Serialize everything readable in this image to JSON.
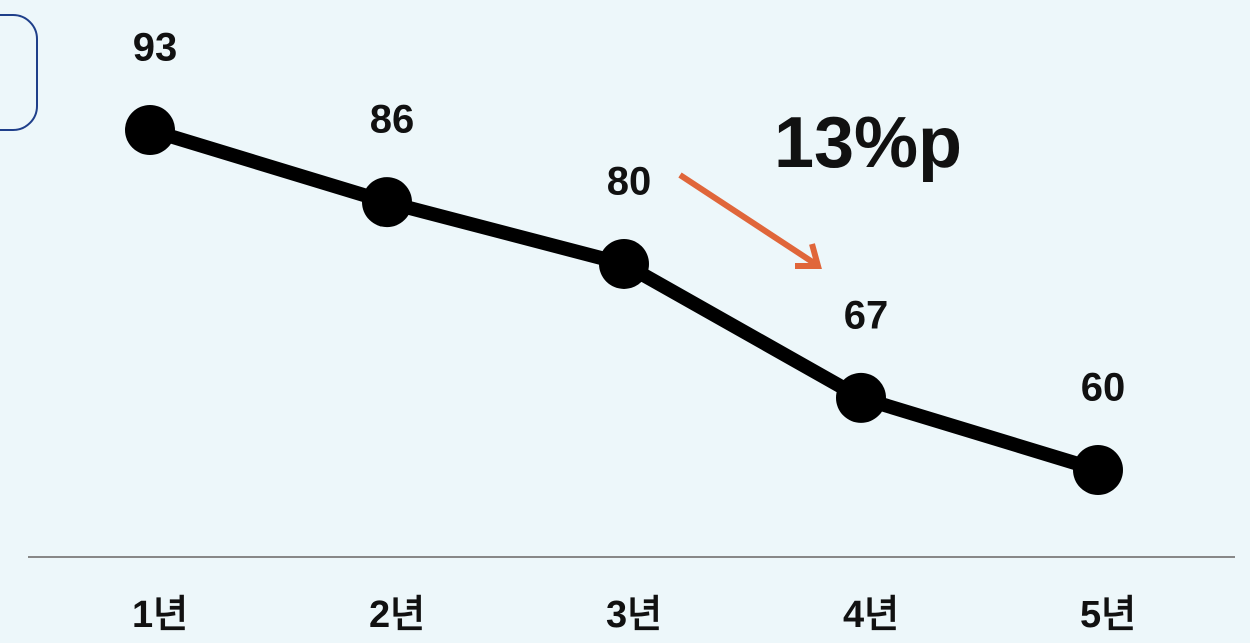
{
  "chart_data": {
    "type": "line",
    "categories": [
      "1년",
      "2년",
      "3년",
      "4년",
      "5년"
    ],
    "series": [
      {
        "name": null,
        "color": "#000000",
        "values": [
          93,
          86,
          80,
          67,
          60
        ]
      }
    ],
    "annotation": "13%p",
    "annotation_color": "#e0663a"
  }
}
